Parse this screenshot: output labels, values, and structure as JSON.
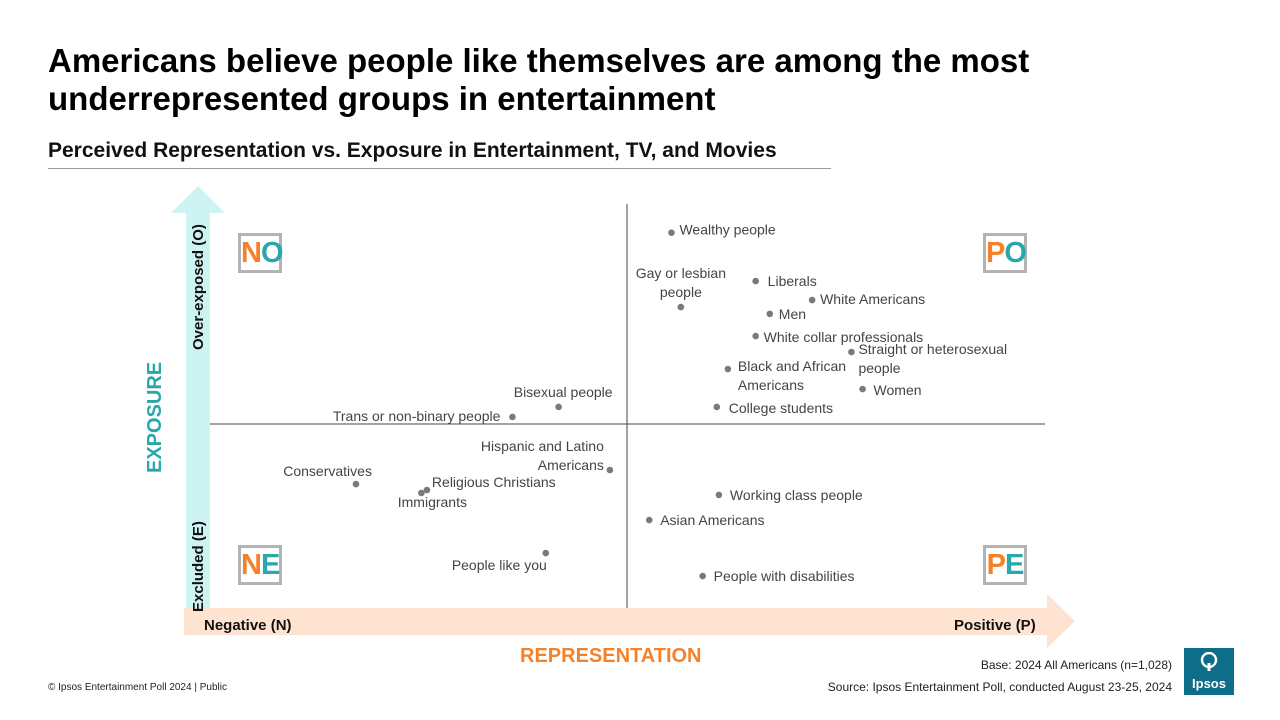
{
  "title": "Americans believe people like themselves are among the most underrepresented groups in entertainment",
  "subtitle": "Perceived Representation vs. Exposure in Entertainment, TV, and Movies",
  "quadrants": {
    "no": {
      "a": "N",
      "b": "O"
    },
    "po": {
      "a": "P",
      "b": "O"
    },
    "ne": {
      "a": "N",
      "b": "E"
    },
    "pe": {
      "a": "P",
      "b": "E"
    }
  },
  "axes": {
    "y_title": "EXPOSURE",
    "y_top": "Over-exposed (O)",
    "y_bottom": "Excluded (E)",
    "x_title": "REPRESENTATION",
    "x_left": "Negative (N)",
    "x_right": "Positive (P)"
  },
  "colors": {
    "orange": "#f5822a",
    "teal": "#28a8aa",
    "x_arrow": "#fde3d0",
    "y_arrow": "#cdf3f3",
    "point": "#7a7a7a"
  },
  "chart_data": {
    "type": "scatter",
    "xlabel": "REPRESENTATION",
    "ylabel": "EXPOSURE",
    "xlim": [
      -1,
      1
    ],
    "ylim": [
      -1,
      1
    ],
    "grid": false,
    "points": [
      {
        "label": "Wealthy people",
        "x": 0.104,
        "y": 0.898
      },
      {
        "label": "Gay or lesbian people",
        "x": 0.126,
        "y": 0.549
      },
      {
        "label": "Liberals",
        "x": 0.301,
        "y": 0.671
      },
      {
        "label": "White Americans",
        "x": 0.433,
        "y": 0.582
      },
      {
        "label": "Men",
        "x": 0.334,
        "y": 0.517
      },
      {
        "label": "White collar professionals",
        "x": 0.301,
        "y": 0.413
      },
      {
        "label": "Straight or heterosexual people",
        "x": 0.525,
        "y": 0.338
      },
      {
        "label": "Black and African Americans",
        "x": 0.236,
        "y": 0.258
      },
      {
        "label": "Women",
        "x": 0.551,
        "y": 0.164
      },
      {
        "label": "College students",
        "x": 0.21,
        "y": 0.08
      },
      {
        "label": "Bisexual people",
        "x": -0.16,
        "y": 0.08
      },
      {
        "label": "Trans or non-binary people",
        "x": -0.268,
        "y": 0.033
      },
      {
        "label": "Hispanic and Latino Americans",
        "x": -0.04,
        "y": -0.216
      },
      {
        "label": "Conservatives",
        "x": -0.634,
        "y": -0.282
      },
      {
        "label": "Religious Christians",
        "x": -0.468,
        "y": -0.31
      },
      {
        "label": "Immigrants",
        "x": -0.481,
        "y": -0.324
      },
      {
        "label": "Working class people",
        "x": 0.215,
        "y": -0.333
      },
      {
        "label": "Asian Americans",
        "x": 0.052,
        "y": -0.451
      },
      {
        "label": "People like you",
        "x": -0.19,
        "y": -0.606
      },
      {
        "label": "People with disabilities",
        "x": 0.177,
        "y": -0.714
      }
    ]
  },
  "footer": {
    "copyright": "© Ipsos Entertainment Poll 2024 | Public",
    "base": "Base: 2024 All Americans (n=1,028)",
    "source": "Source: Ipsos Entertainment Poll, conducted August 23-25, 2024",
    "logo_text": "Ipsos"
  }
}
